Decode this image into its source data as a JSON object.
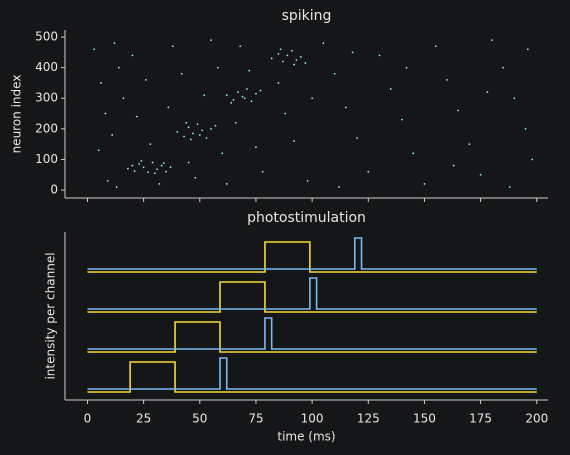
{
  "chart_data": [
    {
      "type": "scatter",
      "title": "spiking",
      "ylabel": "neuron index",
      "xlim": [
        -10,
        205
      ],
      "ylim": [
        -26,
        523
      ],
      "xticks": [
        0,
        25,
        50,
        75,
        100,
        125,
        150,
        175,
        200
      ],
      "yticks": [
        0,
        100,
        200,
        300,
        400,
        500
      ],
      "color": "#8ff5d8",
      "x": [
        18,
        21,
        23,
        25,
        27,
        29,
        31,
        33,
        35,
        37,
        24,
        30,
        20,
        34,
        40,
        43,
        45,
        47,
        49,
        51,
        53,
        55,
        44,
        50,
        57,
        46,
        62,
        65,
        67,
        69,
        71,
        73,
        75,
        64,
        70,
        77,
        82,
        85,
        87,
        89,
        91,
        93,
        95,
        97,
        86,
        92,
        3,
        6,
        8,
        5,
        9,
        12,
        14,
        16,
        11,
        13,
        20,
        26,
        22,
        28,
        32,
        38,
        42,
        36,
        45,
        48,
        55,
        58,
        52,
        60,
        62,
        68,
        72,
        66,
        75,
        78,
        85,
        88,
        92,
        98,
        105,
        110,
        115,
        120,
        125,
        130,
        135,
        140,
        145,
        150,
        155,
        160,
        165,
        170,
        175,
        180,
        185,
        190,
        195,
        198,
        188,
        112,
        100,
        118,
        142,
        163,
        178,
        196
      ],
      "y": [
        70,
        62,
        85,
        74,
        58,
        90,
        68,
        80,
        60,
        75,
        95,
        55,
        80,
        88,
        190,
        175,
        205,
        185,
        215,
        195,
        170,
        200,
        220,
        180,
        210,
        165,
        310,
        295,
        320,
        305,
        330,
        290,
        315,
        285,
        300,
        325,
        430,
        445,
        420,
        440,
        455,
        425,
        435,
        415,
        460,
        410,
        460,
        350,
        250,
        130,
        30,
        480,
        400,
        300,
        180,
        10,
        440,
        360,
        240,
        150,
        20,
        470,
        380,
        270,
        90,
        40,
        490,
        400,
        310,
        120,
        20,
        470,
        390,
        220,
        140,
        60,
        350,
        250,
        160,
        30,
        480,
        380,
        270,
        170,
        60,
        440,
        330,
        230,
        120,
        20,
        470,
        360,
        260,
        150,
        50,
        490,
        400,
        300,
        200,
        100,
        10,
        10,
        300,
        450,
        400,
        80,
        320,
        460
      ]
    },
    {
      "type": "line",
      "title": "photostimulation",
      "xlabel": "time (ms)",
      "ylabel": "intensity per channel",
      "xlim": [
        -10,
        205
      ],
      "ylim": [
        -0.2,
        4.0
      ],
      "xticks": [
        0,
        25,
        50,
        75,
        100,
        125,
        150,
        175,
        200
      ],
      "series": [
        {
          "color": "#f5d838",
          "x": [
            0,
            19,
            19,
            39,
            39,
            200
          ],
          "values": [
            0,
            0,
            0.75,
            0.75,
            0,
            0
          ]
        },
        {
          "color": "#7cb9f0",
          "x": [
            0,
            59,
            59,
            62,
            62,
            200
          ],
          "values": [
            0.075,
            0.075,
            0.85,
            0.85,
            0.075,
            0.075
          ]
        },
        {
          "color": "#f5d838",
          "x": [
            0,
            39,
            39,
            59,
            59,
            200
          ],
          "values": [
            1,
            1,
            1.75,
            1.75,
            1,
            1
          ]
        },
        {
          "color": "#7cb9f0",
          "x": [
            0,
            79,
            79,
            82,
            82,
            200
          ],
          "values": [
            1.075,
            1.075,
            1.85,
            1.85,
            1.075,
            1.075
          ]
        },
        {
          "color": "#f5d838",
          "x": [
            0,
            59,
            59,
            79,
            79,
            200
          ],
          "values": [
            2,
            2,
            2.75,
            2.75,
            2,
            2
          ]
        },
        {
          "color": "#7cb9f0",
          "x": [
            0,
            99,
            99,
            102,
            102,
            200
          ],
          "values": [
            2.075,
            2.075,
            2.85,
            2.85,
            2.075,
            2.075
          ]
        },
        {
          "color": "#f5d838",
          "x": [
            0,
            79,
            79,
            99,
            99,
            200
          ],
          "values": [
            3,
            3,
            3.75,
            3.75,
            3,
            3
          ]
        },
        {
          "color": "#7cb9f0",
          "x": [
            0,
            119,
            119,
            122,
            122,
            200
          ],
          "values": [
            3.075,
            3.075,
            3.85,
            3.85,
            3.075,
            3.075
          ]
        }
      ]
    }
  ]
}
